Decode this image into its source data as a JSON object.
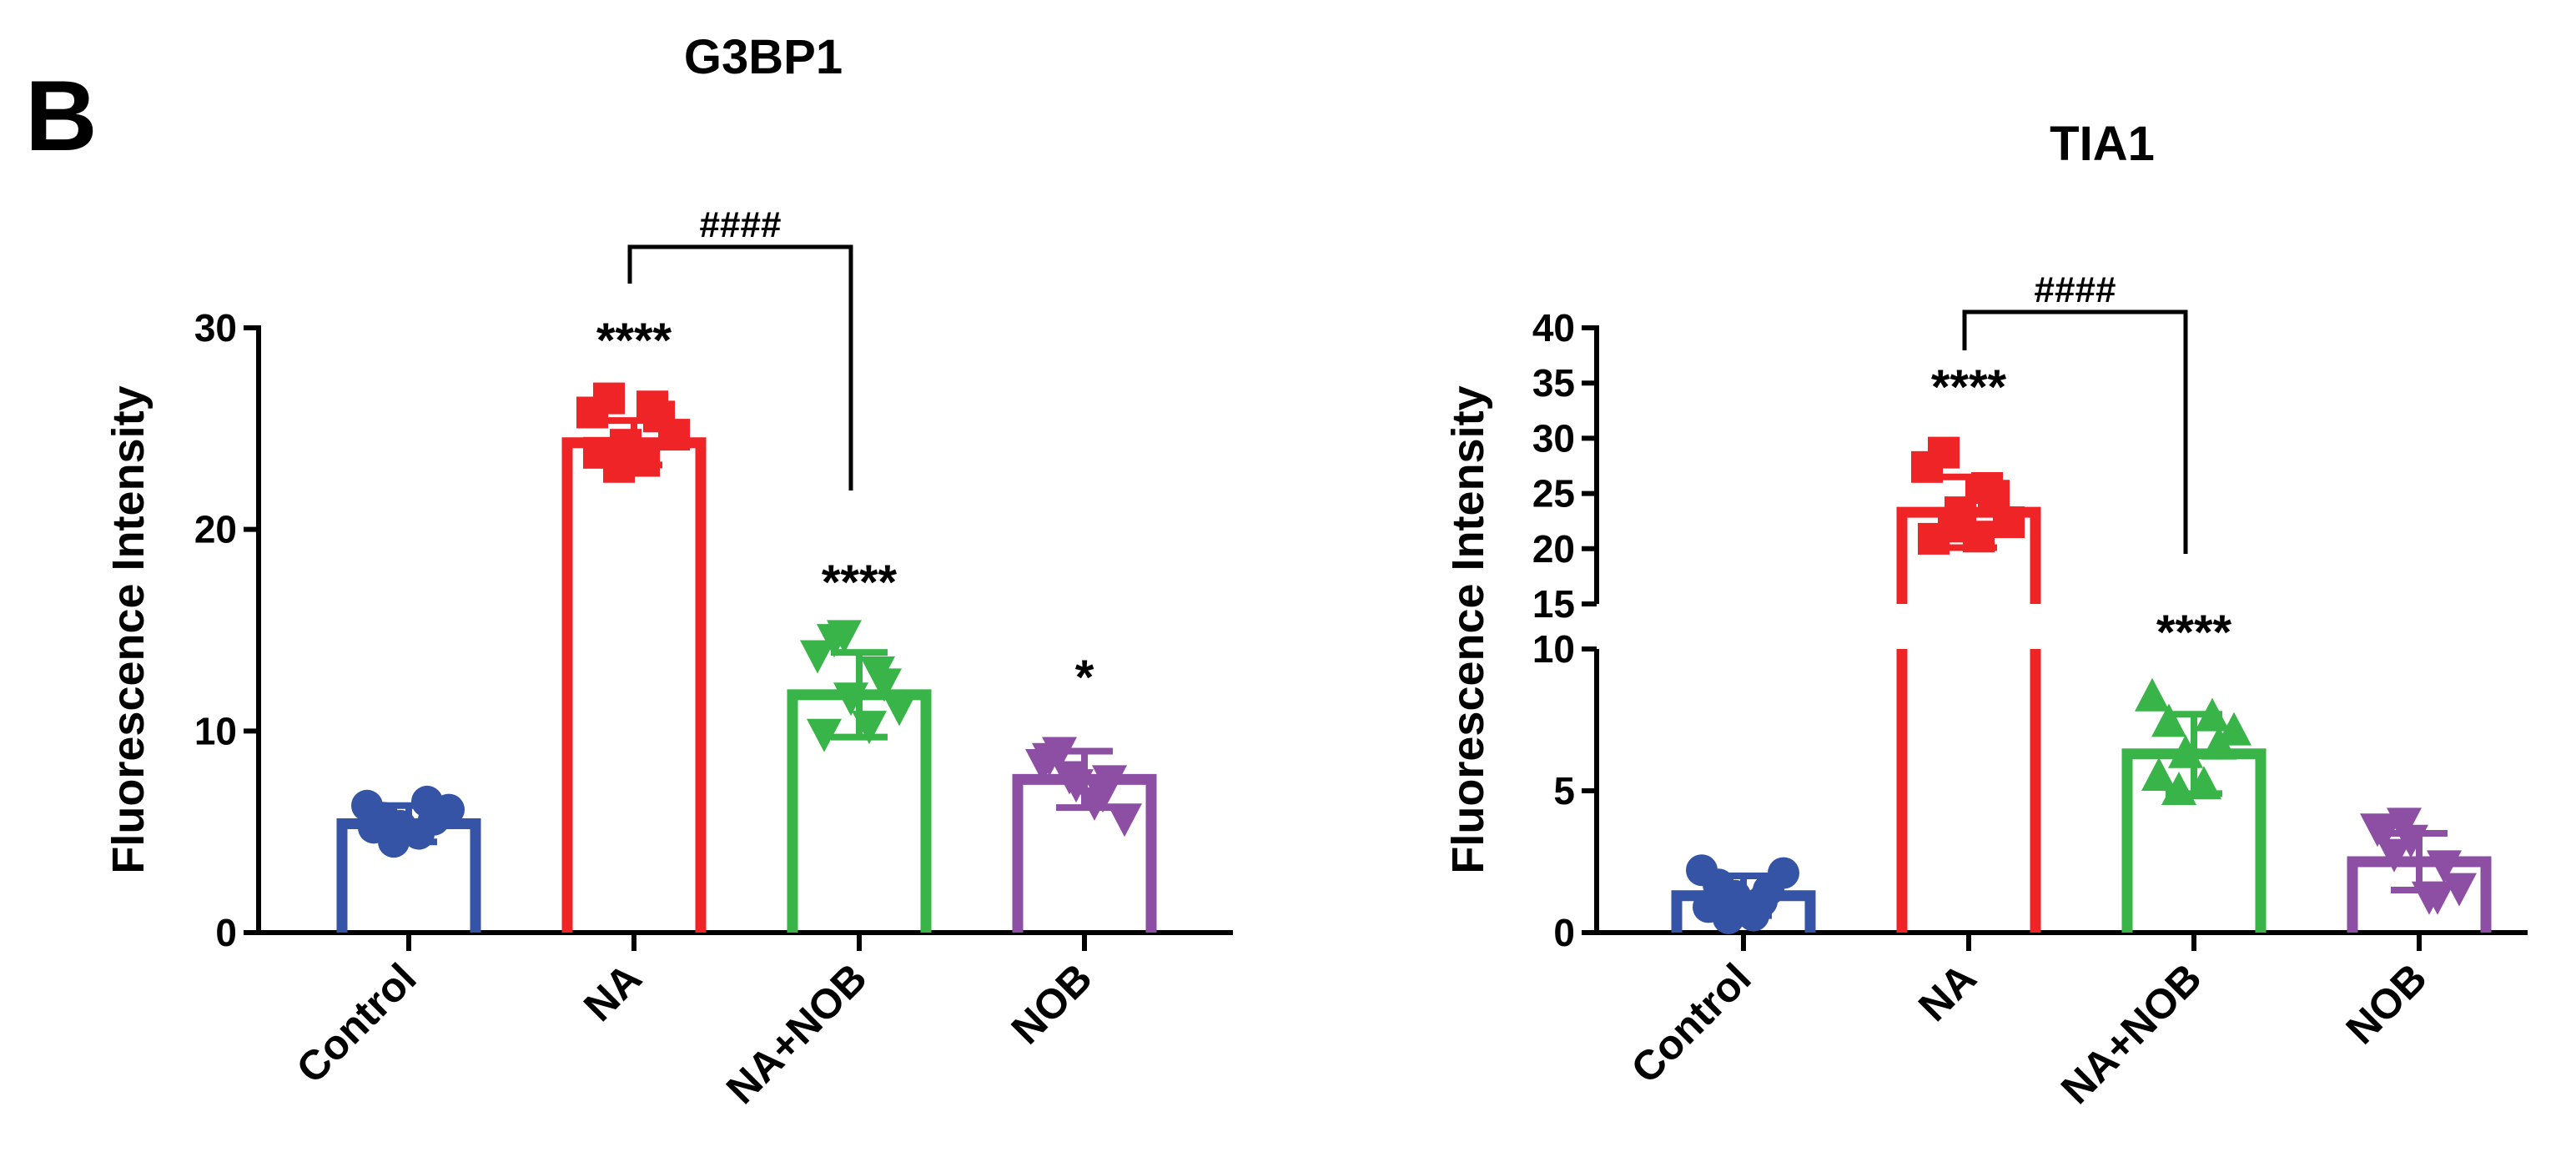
{
  "panel_label": "B",
  "chart_data": [
    {
      "type": "bar",
      "title": "G3BP1",
      "xlabel": "",
      "ylabel": "Fluorescence Intensity",
      "ylim": [
        0,
        30
      ],
      "yticks": [
        0,
        10,
        20,
        30
      ],
      "categories": [
        "Control",
        "NA",
        "NA+NOB",
        "NOB"
      ],
      "colors": [
        "#3554a5",
        "#ee2427",
        "#38b449",
        "#8c4fa3"
      ],
      "markers": [
        "circle",
        "square",
        "triangle-down",
        "triangle-down"
      ],
      "values": [
        5.4,
        24.3,
        11.8,
        7.6
      ],
      "sd": [
        0.9,
        1.1,
        2.1,
        1.4
      ],
      "points": [
        [
          6.3,
          5.7,
          5.3,
          4.9,
          5.6,
          6.1,
          5.2,
          6.5,
          4.5
        ],
        [
          25.8,
          26.5,
          24.2,
          23.4,
          25.6,
          24.7,
          23.8,
          26.1,
          23.1
        ],
        [
          13.8,
          14.6,
          11.7,
          10.3,
          12.4,
          11.2,
          9.9,
          13.0,
          14.8
        ],
        [
          8.4,
          9.0,
          7.4,
          6.5,
          7.6,
          5.7,
          8.7,
          6.9,
          7.8
        ]
      ],
      "significance": [
        "",
        "****",
        "****",
        "*"
      ],
      "comparison": {
        "from": "NA",
        "to": "NA+NOB",
        "label": "####"
      }
    },
    {
      "type": "bar",
      "title": "TIA1",
      "xlabel": "",
      "ylabel": "Fluorescence Intensity",
      "ylim": [
        0,
        40
      ],
      "axis_break": [
        10,
        15
      ],
      "yticks_lower": [
        0,
        5,
        10
      ],
      "yticks_upper": [
        15,
        20,
        25,
        30,
        35,
        40
      ],
      "categories": [
        "Control",
        "NA",
        "NA+NOB",
        "NOB"
      ],
      "colors": [
        "#3554a5",
        "#ee2427",
        "#38b449",
        "#8c4fa3"
      ],
      "markers": [
        "circle",
        "square",
        "triangle-up",
        "triangle-down"
      ],
      "values": [
        1.3,
        23.3,
        6.3,
        2.5
      ],
      "sd": [
        0.7,
        3.2,
        1.4,
        1.0
      ],
      "points": [
        [
          2.2,
          1.7,
          1.3,
          0.6,
          1.5,
          2.1,
          0.9,
          1.1,
          0.5
        ],
        [
          27.4,
          28.7,
          23.3,
          21.1,
          24.8,
          22.4,
          20.9,
          25.5,
          22.0
        ],
        [
          8.3,
          7.4,
          6.3,
          5.2,
          6.6,
          7.1,
          5.5,
          7.6,
          5.0
        ],
        [
          3.7,
          2.8,
          3.3,
          1.3,
          2.4,
          1.6,
          3.6,
          1.3,
          3.9
        ]
      ],
      "significance": [
        "",
        "****",
        "****",
        ""
      ],
      "comparison": {
        "from": "NA",
        "to": "NA+NOB",
        "label": "####"
      }
    }
  ]
}
